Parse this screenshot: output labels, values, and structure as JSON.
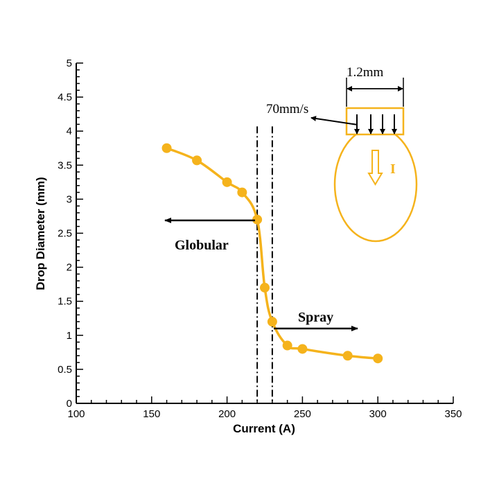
{
  "chart_data": {
    "type": "line",
    "xlabel": "Current (A)",
    "ylabel": "Drop Diameter (mm)",
    "xlim": [
      100,
      350
    ],
    "ylim": [
      0,
      5
    ],
    "xticks": [
      "100",
      "150",
      "200",
      "250",
      "300",
      "350"
    ],
    "yticks": [
      "0",
      "0.5",
      "1",
      "1.5",
      "2",
      "2.5",
      "3",
      "3.5",
      "4",
      "4.5",
      "5"
    ],
    "grid": false,
    "series": [
      {
        "x": [
          160,
          180,
          200,
          210,
          220,
          225,
          230,
          240,
          250,
          280,
          300
        ],
        "y": [
          3.75,
          3.57,
          3.25,
          3.1,
          2.7,
          1.7,
          1.2,
          0.85,
          0.8,
          0.7,
          0.66
        ],
        "color": "#f5b31c",
        "marker": "circle"
      }
    ],
    "vlines": [
      220,
      230
    ],
    "annotations": {
      "globular": "Globular",
      "spray": "Spray",
      "speed": "70mm/s",
      "width": "1.2mm",
      "current_symbol": "I"
    }
  }
}
